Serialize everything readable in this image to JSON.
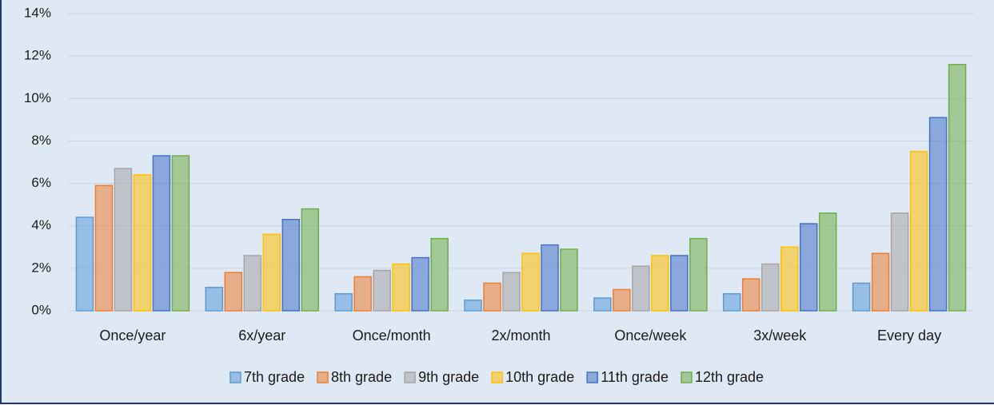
{
  "chart_data": {
    "type": "bar",
    "categories": [
      "Once/year",
      "6x/year",
      "Once/month",
      "2x/month",
      "Once/week",
      "3x/week",
      "Every day"
    ],
    "series": [
      {
        "name": "7th grade",
        "color": "#5b9bd5",
        "values": [
          4.4,
          1.1,
          0.8,
          0.5,
          0.6,
          0.8,
          1.3
        ]
      },
      {
        "name": "8th grade",
        "color": "#ed7d31",
        "values": [
          5.9,
          1.8,
          1.6,
          1.3,
          1.0,
          1.5,
          2.7
        ]
      },
      {
        "name": "9th grade",
        "color": "#a5a5a5",
        "values": [
          6.7,
          2.6,
          1.9,
          1.8,
          2.1,
          2.2,
          4.6
        ]
      },
      {
        "name": "10th grade",
        "color": "#ffc000",
        "values": [
          6.4,
          3.6,
          2.2,
          2.7,
          2.6,
          3.0,
          7.5
        ]
      },
      {
        "name": "11th grade",
        "color": "#4472c4",
        "values": [
          7.3,
          4.3,
          2.5,
          3.1,
          2.6,
          4.1,
          9.1
        ]
      },
      {
        "name": "12th grade",
        "color": "#70ad47",
        "values": [
          7.3,
          4.8,
          3.4,
          2.9,
          3.4,
          4.6,
          11.6
        ]
      }
    ],
    "ylim": [
      0,
      14
    ],
    "yticks": [
      {
        "value": 0,
        "label": "0%"
      },
      {
        "value": 2,
        "label": "2%"
      },
      {
        "value": 4,
        "label": "4%"
      },
      {
        "value": 6,
        "label": "6%"
      },
      {
        "value": 8,
        "label": "8%"
      },
      {
        "value": 10,
        "label": "10%"
      },
      {
        "value": 12,
        "label": "12%"
      },
      {
        "value": 14,
        "label": "14%"
      }
    ],
    "grid": true,
    "legend": "bottom"
  }
}
